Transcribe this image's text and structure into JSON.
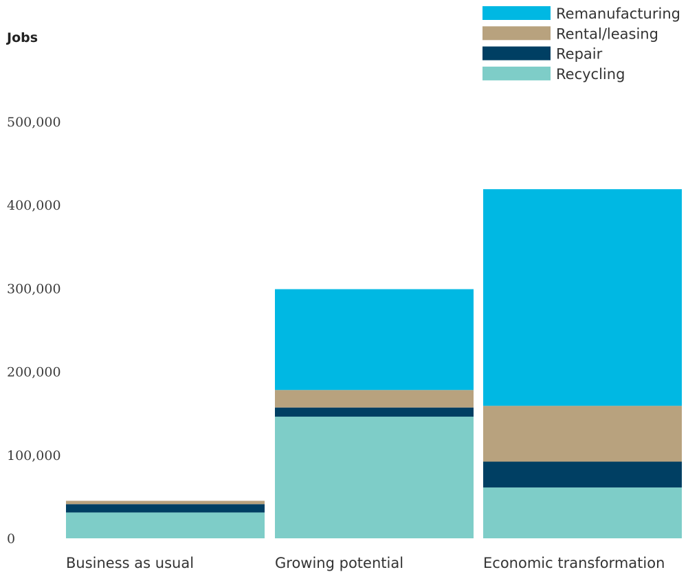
{
  "chart_data": {
    "type": "bar",
    "stacked": true,
    "ylabel": "Jobs",
    "ylim": [
      0,
      500000
    ],
    "yticks": [
      {
        "value": 0,
        "label": "0"
      },
      {
        "value": 100000,
        "label": "100,000"
      },
      {
        "value": 200000,
        "label": "200,000"
      },
      {
        "value": 300000,
        "label": "300,000"
      },
      {
        "value": 400000,
        "label": "400,000"
      },
      {
        "value": 500000,
        "label": "500,000"
      }
    ],
    "categories": [
      "Business as usual",
      "Growing potential",
      "Economic transformation"
    ],
    "series": [
      {
        "name": "Recycling",
        "color": "#7ecdc8",
        "values": [
          31000,
          146000,
          61000
        ]
      },
      {
        "name": "Repair",
        "color": "#003f63",
        "values": [
          10000,
          11000,
          31000
        ]
      },
      {
        "name": "Rental/leasing",
        "color": "#b8a27e",
        "values": [
          4000,
          21000,
          67000
        ]
      },
      {
        "name": "Remanufacturing",
        "color": "#00b8e3",
        "values": [
          0,
          121000,
          260000
        ]
      }
    ],
    "legend": {
      "position": "top-right",
      "order": [
        "Remanufacturing",
        "Rental/leasing",
        "Repair",
        "Recycling"
      ]
    },
    "grid": false
  }
}
